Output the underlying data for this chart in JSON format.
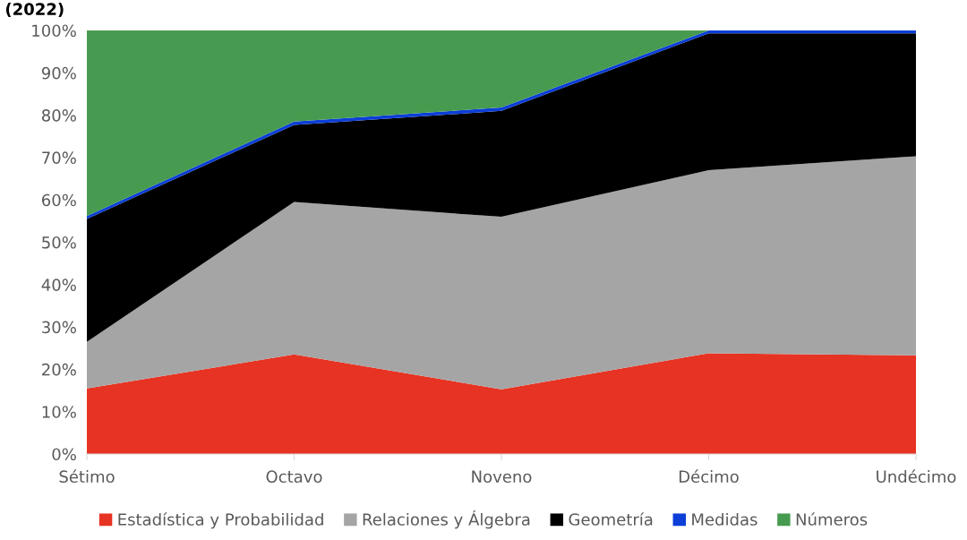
{
  "chart_data": {
    "type": "area",
    "stacked": true,
    "title": "(2022)",
    "categories": [
      "Sétimo",
      "Octavo",
      "Noveno",
      "Décimo",
      "Undécimo"
    ],
    "series": [
      {
        "name": "Estadística y Probabilidad",
        "color": "#e73323",
        "values": [
          15.5,
          23.5,
          15.3,
          23.8,
          23.3
        ]
      },
      {
        "name": "Relaciones y Álgebra",
        "color": "#a5a5a5",
        "values": [
          11,
          36,
          40.7,
          43.2,
          47
        ]
      },
      {
        "name": "Geometría",
        "color": "#000000",
        "values": [
          29,
          18.2,
          25,
          32.3,
          29
        ]
      },
      {
        "name": "Medidas",
        "color": "#0c3ed8",
        "values": [
          0.7,
          0.8,
          0.8,
          0.7,
          0.7
        ]
      },
      {
        "name": "Números",
        "color": "#479b50",
        "values": [
          43.8,
          21.5,
          18.2,
          0,
          0
        ]
      }
    ],
    "ylim": [
      0,
      100
    ],
    "yticks": [
      {
        "value": 0,
        "label": "0%"
      },
      {
        "value": 10,
        "label": "10%"
      },
      {
        "value": 20,
        "label": "20%"
      },
      {
        "value": 30,
        "label": "30%"
      },
      {
        "value": 40,
        "label": "40%"
      },
      {
        "value": 50,
        "label": "50%"
      },
      {
        "value": 60,
        "label": "60%"
      },
      {
        "value": 70,
        "label": "70%"
      },
      {
        "value": 80,
        "label": "80%"
      },
      {
        "value": 90,
        "label": "90%"
      },
      {
        "value": 100,
        "label": "100%"
      }
    ],
    "grid": false,
    "legend": "bottom"
  }
}
